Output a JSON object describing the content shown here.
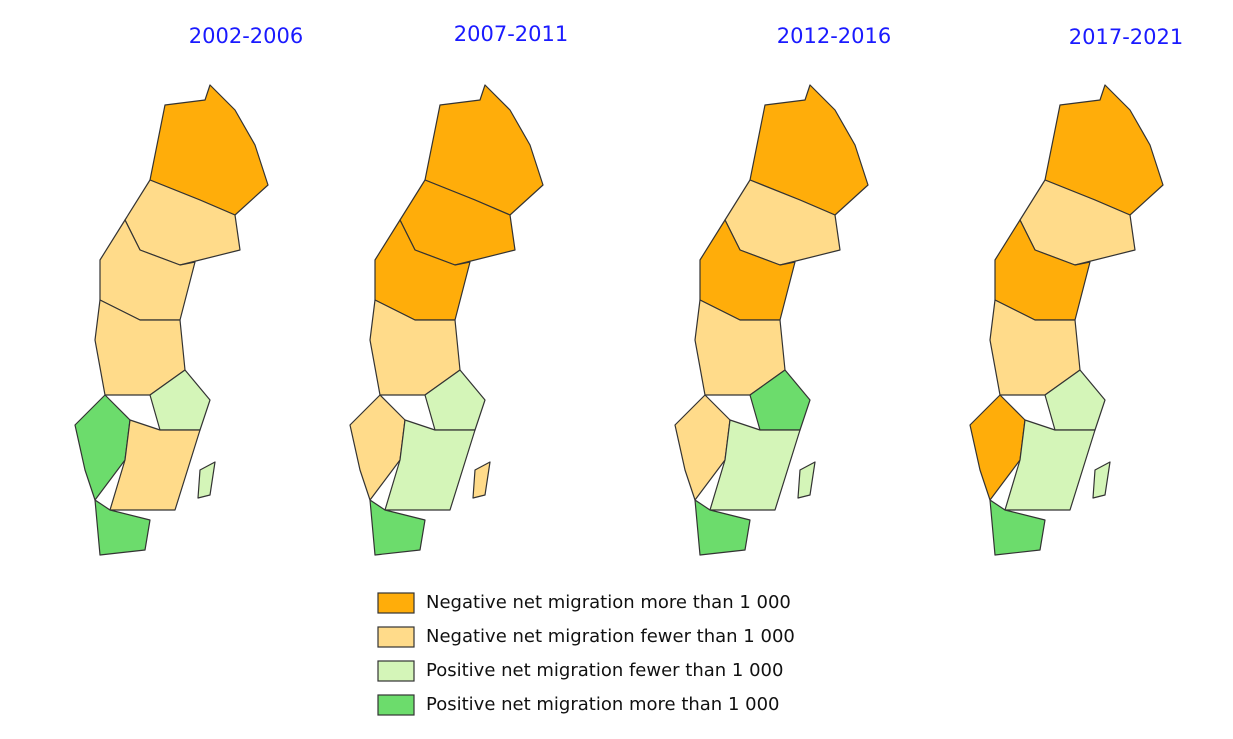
{
  "panels": [
    {
      "title": "2002-2006"
    },
    {
      "title": "2007-2011"
    },
    {
      "title": "2012-2016"
    },
    {
      "title": "2017-2021"
    }
  ],
  "legend": [
    {
      "label": "Negative net migration more than 1 000",
      "color": "#ffad0a"
    },
    {
      "label": "Negative net migration fewer than 1 000",
      "color": "#ffdb8a"
    },
    {
      "label": "Positive net migration fewer than 1 000",
      "color": "#d4f5b8"
    },
    {
      "label": "Positive net migration more than 1 000",
      "color": "#6cdc6c"
    }
  ]
}
